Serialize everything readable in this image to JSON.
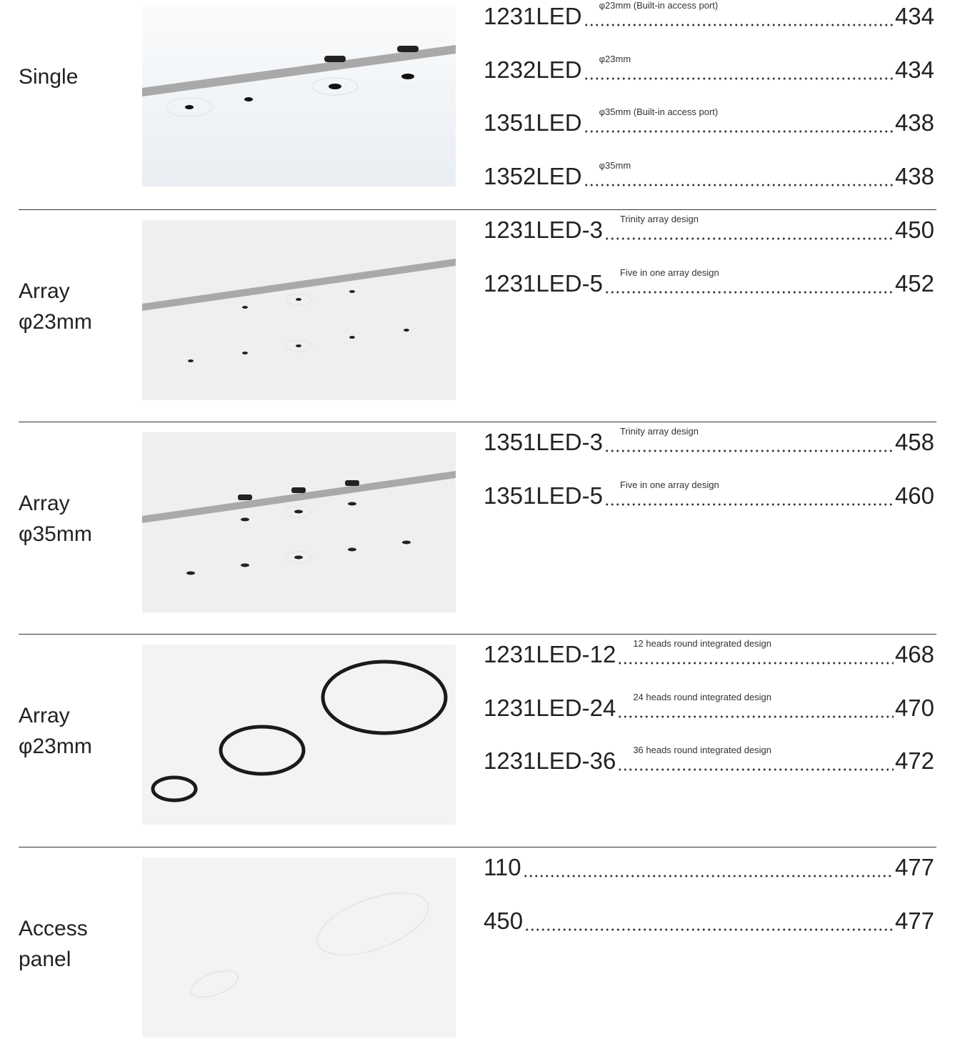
{
  "sections": [
    {
      "label": [
        "Single"
      ],
      "entries": [
        {
          "code": "1231LED",
          "note": "φ23mm (Built-in access port)",
          "page": "434"
        },
        {
          "code": "1232LED",
          "note": "φ23mm",
          "page": "434"
        },
        {
          "code": "1351LED",
          "note": "φ35mm (Built-in access port)",
          "page": "438"
        },
        {
          "code": "1352LED",
          "note": "φ35mm",
          "page": "438"
        }
      ]
    },
    {
      "label": [
        "Array",
        "φ23mm"
      ],
      "entries": [
        {
          "code": "1231LED-3",
          "note": "Trinity array design",
          "page": "450"
        },
        {
          "code": "1231LED-5",
          "note": "Five in one array design",
          "page": "452"
        }
      ]
    },
    {
      "label": [
        "Array",
        "φ35mm"
      ],
      "entries": [
        {
          "code": "1351LED-3",
          "note": "Trinity array design",
          "page": "458"
        },
        {
          "code": "1351LED-5",
          "note": "Five in one array design",
          "page": "460"
        }
      ]
    },
    {
      "label": [
        "Array",
        "φ23mm"
      ],
      "entries": [
        {
          "code": "1231LED-12",
          "note": "12 heads round integrated design",
          "page": "468"
        },
        {
          "code": "1231LED-24",
          "note": "24 heads round integrated design",
          "page": "470"
        },
        {
          "code": "1231LED-36",
          "note": "36 heads round integrated design",
          "page": "472"
        }
      ]
    },
    {
      "label": [
        "Access",
        "panel"
      ],
      "entries": [
        {
          "code": "110",
          "page": "477"
        },
        {
          "code": "450",
          "page": "477"
        }
      ]
    }
  ]
}
